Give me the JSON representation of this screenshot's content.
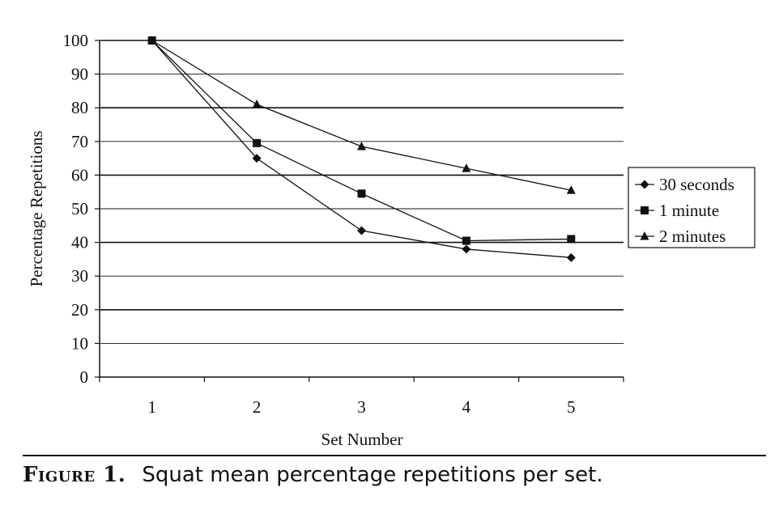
{
  "chart_data": {
    "type": "line",
    "title": "",
    "xlabel": "Set Number",
    "ylabel": "Percentage Repetitions",
    "categories": [
      "1",
      "2",
      "3",
      "4",
      "5"
    ],
    "ylim": [
      0,
      100
    ],
    "yticks": [
      "0",
      "10",
      "20",
      "30",
      "40",
      "50",
      "60",
      "70",
      "80",
      "90",
      "100"
    ],
    "grid": true,
    "legend_position": "right",
    "series": [
      {
        "name": "30 seconds",
        "marker": "diamond",
        "values": [
          100,
          65,
          43.5,
          38,
          35.5
        ]
      },
      {
        "name": "1 minute",
        "marker": "square",
        "values": [
          100,
          69.5,
          54.5,
          40.5,
          41
        ]
      },
      {
        "name": "2 minutes",
        "marker": "triangle",
        "values": [
          100,
          81,
          68.5,
          62,
          55.5
        ]
      }
    ],
    "colors": {
      "line": "#111111",
      "grid": "#111111",
      "background": "#ffffff"
    }
  },
  "caption": {
    "label": "Figure 1.",
    "text": "Squat mean percentage repetitions per set."
  }
}
